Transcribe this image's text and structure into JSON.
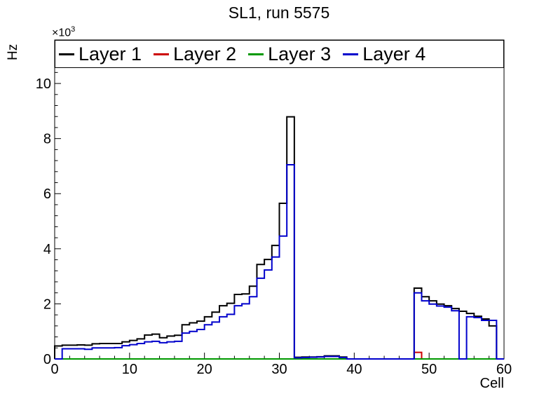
{
  "title": "SL1, run 5575",
  "chart_data": {
    "type": "line",
    "subtype": "step-histogram",
    "title": "SL1, run 5575",
    "xlabel": "Cell",
    "ylabel": "Hz",
    "y_multiplier_base": "×10",
    "y_multiplier_exp": "3",
    "values_unit": "×10³ Hz",
    "xlim": [
      0,
      60
    ],
    "ylim": [
      0,
      11.58
    ],
    "bin_width": 1,
    "grid": false,
    "legend_position": "top-inside-full-width",
    "x_ticks": [
      0,
      10,
      20,
      30,
      40,
      50,
      60
    ],
    "x_minor_interval": 2,
    "y_ticks": [
      0,
      2,
      4,
      6,
      8,
      10
    ],
    "y_minor_interval": 0.4,
    "frame_color": "#000000",
    "series": [
      {
        "name": "Layer 1",
        "color": "#000000",
        "values": [
          0.47,
          0.5,
          0.5,
          0.51,
          0.5,
          0.55,
          0.56,
          0.56,
          0.56,
          0.62,
          0.67,
          0.73,
          0.87,
          0.9,
          0.77,
          0.83,
          0.86,
          1.24,
          1.31,
          1.37,
          1.53,
          1.7,
          1.93,
          2.02,
          2.34,
          2.36,
          2.64,
          3.43,
          3.61,
          4.12,
          5.65,
          8.79,
          0.06,
          0.07,
          0.07,
          0.08,
          0.11,
          0.11,
          0.07,
          0,
          0,
          0,
          0,
          0,
          0,
          0,
          0,
          0,
          2.57,
          2.26,
          2.11,
          1.99,
          1.93,
          1.83,
          1.73,
          1.65,
          1.55,
          1.45,
          1.2,
          0
        ]
      },
      {
        "name": "Layer 2",
        "color": "#cc0000",
        "values": [
          0,
          0,
          0,
          0,
          0,
          0,
          0,
          0,
          0,
          0,
          0,
          0,
          0,
          0,
          0,
          0,
          0,
          0,
          0,
          0,
          0,
          0,
          0,
          0,
          0,
          0,
          0,
          0,
          0,
          0,
          0,
          0,
          0,
          0,
          0,
          0,
          0,
          0,
          0,
          0,
          0,
          0,
          0,
          0,
          0,
          0,
          0,
          0,
          0.24,
          0,
          0,
          0,
          0,
          0,
          0,
          0,
          0,
          0,
          0,
          0
        ]
      },
      {
        "name": "Layer 3",
        "color": "#009900",
        "values": [
          0,
          0,
          0,
          0,
          0,
          0,
          0,
          0,
          0,
          0,
          0,
          0,
          0,
          0,
          0,
          0,
          0,
          0,
          0,
          0,
          0,
          0,
          0,
          0,
          0,
          0,
          0,
          0,
          0,
          0,
          0,
          0,
          0,
          0,
          0,
          0,
          0,
          0,
          0,
          0,
          0,
          0,
          0,
          0,
          0,
          0,
          0,
          0,
          0,
          0,
          0,
          0,
          0,
          0,
          0,
          0,
          0,
          0,
          0,
          0
        ]
      },
      {
        "name": "Layer 4",
        "color": "#0000cc",
        "values": [
          0,
          0.37,
          0.37,
          0.37,
          0.35,
          0.4,
          0.4,
          0.4,
          0.41,
          0.48,
          0.52,
          0.56,
          0.62,
          0.64,
          0.59,
          0.62,
          0.64,
          0.94,
          1.0,
          1.07,
          1.24,
          1.34,
          1.53,
          1.62,
          1.93,
          2.0,
          2.26,
          2.93,
          3.23,
          3.7,
          4.46,
          7.05,
          0.04,
          0.05,
          0.06,
          0.07,
          0.09,
          0.09,
          0.05,
          0,
          0,
          0,
          0,
          0,
          0,
          0,
          0,
          0,
          2.4,
          2.11,
          1.99,
          1.92,
          1.88,
          1.75,
          0,
          1.53,
          1.5,
          1.4,
          1.4,
          0
        ]
      }
    ]
  }
}
